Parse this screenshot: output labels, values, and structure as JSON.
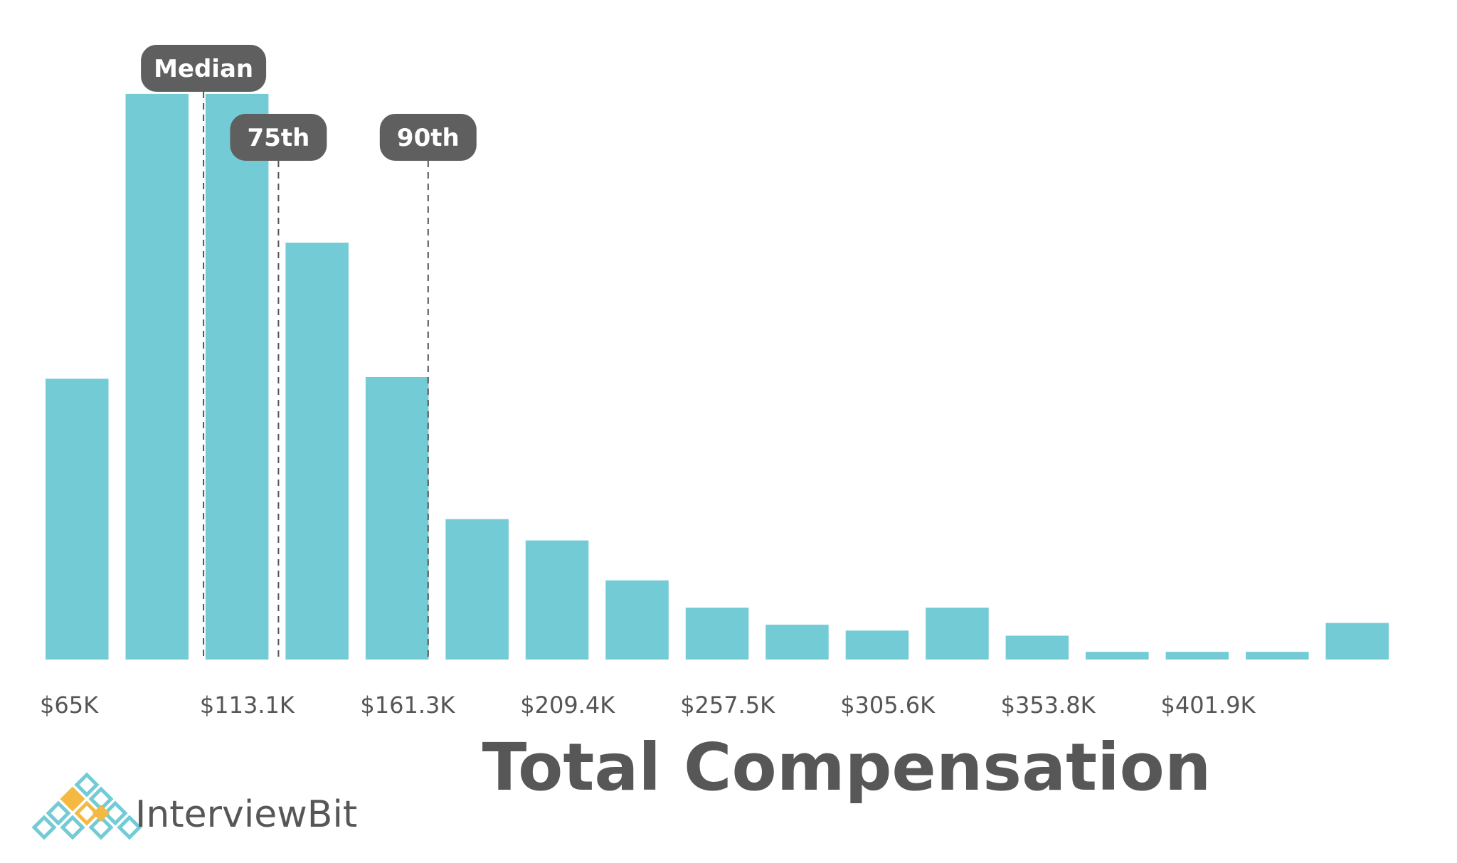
{
  "chart_data": {
    "type": "bar",
    "title": "",
    "xlabel": "Total Compensation",
    "ylabel": "",
    "bin_start_k": 65,
    "bin_width_k": 24.05,
    "values": [
      33,
      66.5,
      66.5,
      49,
      33.2,
      16.5,
      14,
      9.3,
      6.1,
      4.1,
      3.4,
      6.1,
      2.8,
      0.9,
      0.9,
      0.9,
      4.3
    ],
    "ylim": [
      0,
      70
    ],
    "tick_labels": [
      "$65K",
      "$113.1K",
      "$161.3K",
      "$209.4K",
      "$257.5K",
      "$305.6K",
      "$353.8K",
      "$401.9K"
    ],
    "tick_values_k": [
      65,
      113.1,
      161.3,
      209.4,
      257.5,
      305.6,
      353.8,
      401.9
    ],
    "markers": [
      {
        "label": "Median",
        "value_k": 112.5
      },
      {
        "label": "75th",
        "value_k": 135
      },
      {
        "label": "90th",
        "value_k": 180
      }
    ],
    "grid": false,
    "colors": {
      "bar": "#72CBD5",
      "marker_pill": "#5f5f5f",
      "marker_line": "#555555",
      "axis_text": "#555555"
    }
  },
  "brand": {
    "name": "InterviewBit",
    "logo_colors": [
      "#72CBD5",
      "#F4B942"
    ]
  }
}
